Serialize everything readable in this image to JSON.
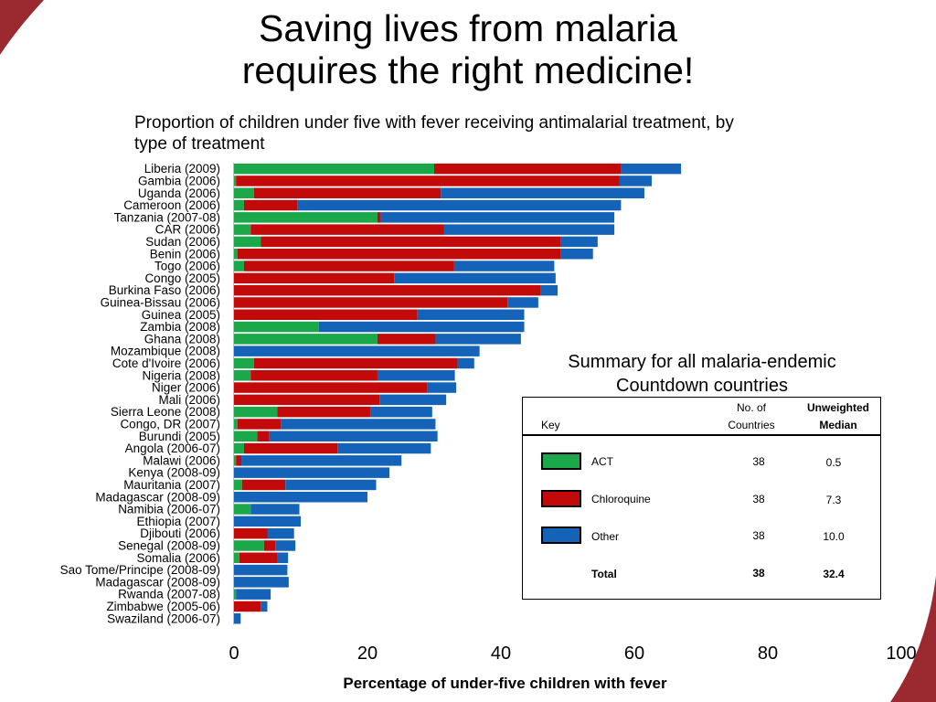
{
  "title_line1": "Saving lives from malaria",
  "title_line2": "requires the right medicine!",
  "chart_data": {
    "type": "bar",
    "orientation": "horizontal",
    "stacked": true,
    "subtitle": "Proportion of children under five with fever receiving antimalarial treatment, by type of treatment",
    "xlabel": "Percentage of under-five children with fever",
    "xlim": [
      0,
      100
    ],
    "xticks": [
      "0",
      "20",
      "40",
      "60",
      "80",
      "100"
    ],
    "grid": false,
    "legend": "table at right",
    "categories": [
      "Liberia (2009)",
      "Gambia (2006)",
      "Uganda (2006)",
      "Cameroon (2006)",
      "Tanzania (2007-08)",
      "CAR (2006)",
      "Sudan (2006)",
      "Benin (2006)",
      "Togo (2006)",
      "Congo (2005)",
      "Burkina Faso (2006)",
      "Guinea-Bissau (2006)",
      "Guinea (2005)",
      "Zambia (2008)",
      "Ghana (2008)",
      "Mozambique (2008)",
      "Cote d'Ivoire (2006)",
      "Nigeria (2008)",
      "Niger (2006)",
      "Mali (2006)",
      "Sierra Leone (2008)",
      "Congo, DR (2007)",
      "Burundi (2005)",
      "Angola (2006-07)",
      "Malawi (2006)",
      "Kenya (2008-09)",
      "Mauritania (2007)",
      "Madagascar (2008-09)",
      "Namibia (2006-07)",
      "Ethiopia (2007)",
      "Djibouti (2006)",
      "Senegal (2008-09)",
      "Somalia (2006)",
      "Sao Tome/Principe (2008-09)",
      "Madagascar (2008-09)",
      "Rwanda (2007-08)",
      "Zimbabwe (2005-06)",
      "Swaziland (2006-07)"
    ],
    "series": [
      {
        "name": "ACT",
        "color": "#1ba84b",
        "values": [
          30,
          0.3,
          3,
          1.5,
          21.5,
          2.5,
          4,
          0.5,
          1.5,
          0,
          0,
          0,
          0,
          12.7,
          21.5,
          0,
          3,
          2.5,
          0,
          0,
          6.5,
          0.5,
          3.5,
          1.5,
          0.3,
          0,
          1.2,
          0,
          2.5,
          0,
          0,
          4.5,
          0.8,
          0,
          0,
          0.3,
          0,
          0
        ]
      },
      {
        "name": "Chloroquine",
        "color": "#c30a0b",
        "values": [
          28,
          57.5,
          28,
          8,
          0.5,
          29,
          45,
          48.5,
          31.5,
          24,
          46,
          41,
          27.5,
          0,
          8.7,
          0,
          30.5,
          19,
          29,
          21.8,
          14,
          6.5,
          1.8,
          14,
          0.8,
          0,
          6.5,
          0,
          0,
          0,
          5,
          1.7,
          5.7,
          0,
          0,
          0,
          4,
          0
        ]
      },
      {
        "name": "Other",
        "color": "#1463b8",
        "values": [
          9,
          4.8,
          30.5,
          48.5,
          35,
          25.5,
          5.5,
          4.8,
          15,
          24.2,
          2.5,
          4.6,
          16,
          30.8,
          12.8,
          36.8,
          2.5,
          11.6,
          4.3,
          10,
          9.2,
          23.2,
          25.2,
          14,
          24,
          23.3,
          13.6,
          20,
          7.3,
          10,
          4,
          3,
          1.6,
          8,
          8.2,
          5.2,
          1,
          1
        ]
      }
    ]
  },
  "summary": {
    "title_line1": "Summary for all malaria-endemic",
    "title_line2": "Countdown countries",
    "headers": {
      "key": "Key",
      "count_line1": "No. of",
      "count_line2": "Countries",
      "median_line1": "Unweighted",
      "median_line2": "Median"
    },
    "rows": [
      {
        "label": "ACT",
        "count": "38",
        "median": "0.5",
        "color": "#1ba84b"
      },
      {
        "label": "Chloroquine",
        "count": "38",
        "median": "7.3",
        "color": "#c30a0b"
      },
      {
        "label": "Other",
        "count": "38",
        "median": "10.0",
        "color": "#1463b8"
      }
    ],
    "total": {
      "label": "Total",
      "count": "38",
      "median": "32.4"
    }
  }
}
